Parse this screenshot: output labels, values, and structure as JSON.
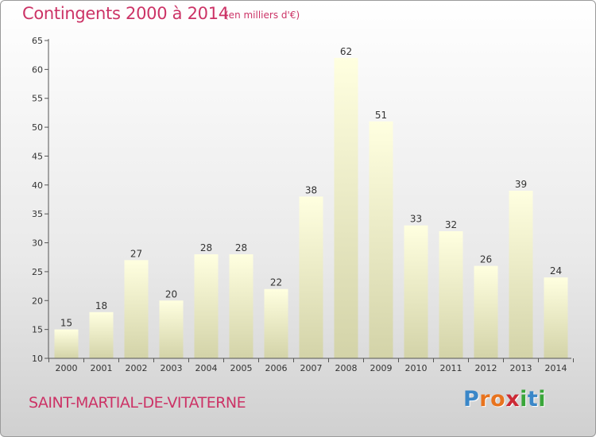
{
  "header": {
    "title": "Contingents 2000 à 2014",
    "subtitle": "(en milliers d'€)"
  },
  "footer": {
    "commune": "SAINT-MARTIAL-DE-VITATERNE",
    "logo_letters": [
      {
        "char": "P",
        "color": "#3a87c8"
      },
      {
        "char": "r",
        "color": "#e8731e"
      },
      {
        "char": "o",
        "color": "#e8731e"
      },
      {
        "char": "x",
        "color": "#cc2a36"
      },
      {
        "char": "i",
        "color": "#3aa63a"
      },
      {
        "char": "t",
        "color": "#3a87c8"
      },
      {
        "char": "i",
        "color": "#3aa63a"
      }
    ]
  },
  "chart_data": {
    "type": "bar",
    "categories": [
      "2000",
      "2001",
      "2002",
      "2003",
      "2004",
      "2005",
      "2006",
      "2007",
      "2008",
      "2009",
      "2010",
      "2011",
      "2012",
      "2013",
      "2014"
    ],
    "values": [
      15,
      18,
      27,
      20,
      28,
      28,
      22,
      38,
      62,
      51,
      33,
      32,
      26,
      39,
      24
    ],
    "ylim": [
      10,
      65
    ],
    "yticks": [
      10,
      15,
      20,
      25,
      30,
      35,
      40,
      45,
      50,
      55,
      60,
      65
    ],
    "grid": false,
    "colors": {
      "bar_top": "#ffffe0",
      "bar_bottom": "#d3d3a8",
      "axis": "#555555"
    }
  }
}
